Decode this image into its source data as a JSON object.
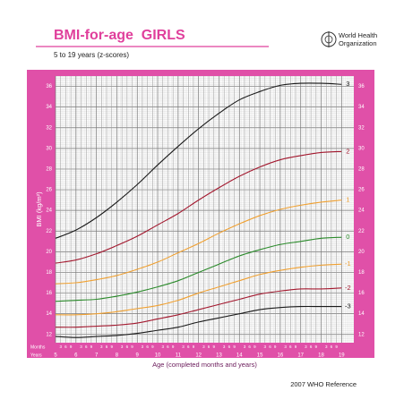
{
  "chart_data": {
    "type": "line",
    "title": "BMI-for-age  GIRLS",
    "subtitle": "5 to 19 years (z-scores)",
    "logo_text": [
      "World Health",
      "Organization"
    ],
    "note": "2007 WHO Reference",
    "xlabel": "Age (completed months and years)",
    "ylabel": "BMI (kg/m²)",
    "month_row_label": "Months",
    "year_row_label": "Years",
    "month_ticks": [
      3,
      6,
      9
    ],
    "x": [
      5,
      6,
      7,
      8,
      9,
      10,
      11,
      12,
      13,
      14,
      15,
      16,
      17,
      18,
      19
    ],
    "series": [
      {
        "name": "3",
        "color": "#1a1a1a",
        "values": [
          21.3,
          22.1,
          23.3,
          24.8,
          26.5,
          28.4,
          30.2,
          31.9,
          33.4,
          34.7,
          35.5,
          36.1,
          36.3,
          36.3,
          36.2
        ]
      },
      {
        "name": "2",
        "color": "#a3182e",
        "values": [
          18.9,
          19.2,
          19.8,
          20.6,
          21.5,
          22.6,
          23.7,
          25.0,
          26.2,
          27.3,
          28.2,
          28.9,
          29.3,
          29.6,
          29.7
        ]
      },
      {
        "name": "1",
        "color": "#f0a030",
        "values": [
          16.9,
          17.0,
          17.3,
          17.7,
          18.3,
          19.0,
          19.9,
          20.8,
          21.8,
          22.7,
          23.5,
          24.1,
          24.5,
          24.8,
          25.0
        ]
      },
      {
        "name": "0",
        "color": "#2a8a2a",
        "values": [
          15.2,
          15.3,
          15.4,
          15.7,
          16.1,
          16.6,
          17.2,
          18.0,
          18.8,
          19.6,
          20.2,
          20.7,
          21.0,
          21.3,
          21.4
        ]
      },
      {
        "name": "-1",
        "color": "#f0a030",
        "values": [
          13.9,
          13.9,
          14.0,
          14.2,
          14.5,
          14.8,
          15.3,
          16.0,
          16.6,
          17.2,
          17.8,
          18.2,
          18.5,
          18.7,
          18.8
        ]
      },
      {
        "name": "-2",
        "color": "#a3182e",
        "values": [
          12.7,
          12.7,
          12.8,
          12.9,
          13.1,
          13.5,
          13.9,
          14.4,
          14.9,
          15.4,
          15.9,
          16.2,
          16.4,
          16.4,
          16.5
        ]
      },
      {
        "name": "-3",
        "color": "#1a1a1a",
        "values": [
          11.8,
          11.7,
          11.8,
          11.9,
          12.1,
          12.4,
          12.7,
          13.2,
          13.6,
          14.0,
          14.4,
          14.6,
          14.7,
          14.7,
          14.7
        ]
      }
    ],
    "xlim": [
      5,
      19.6
    ],
    "ylim": [
      11.2,
      37
    ],
    "xticks": [
      5,
      6,
      7,
      8,
      9,
      10,
      11,
      12,
      13,
      14,
      15,
      16,
      17,
      18,
      19
    ],
    "yticks": [
      12,
      14,
      16,
      18,
      20,
      22,
      24,
      26,
      28,
      30,
      32,
      34,
      36
    ],
    "grid": true
  }
}
